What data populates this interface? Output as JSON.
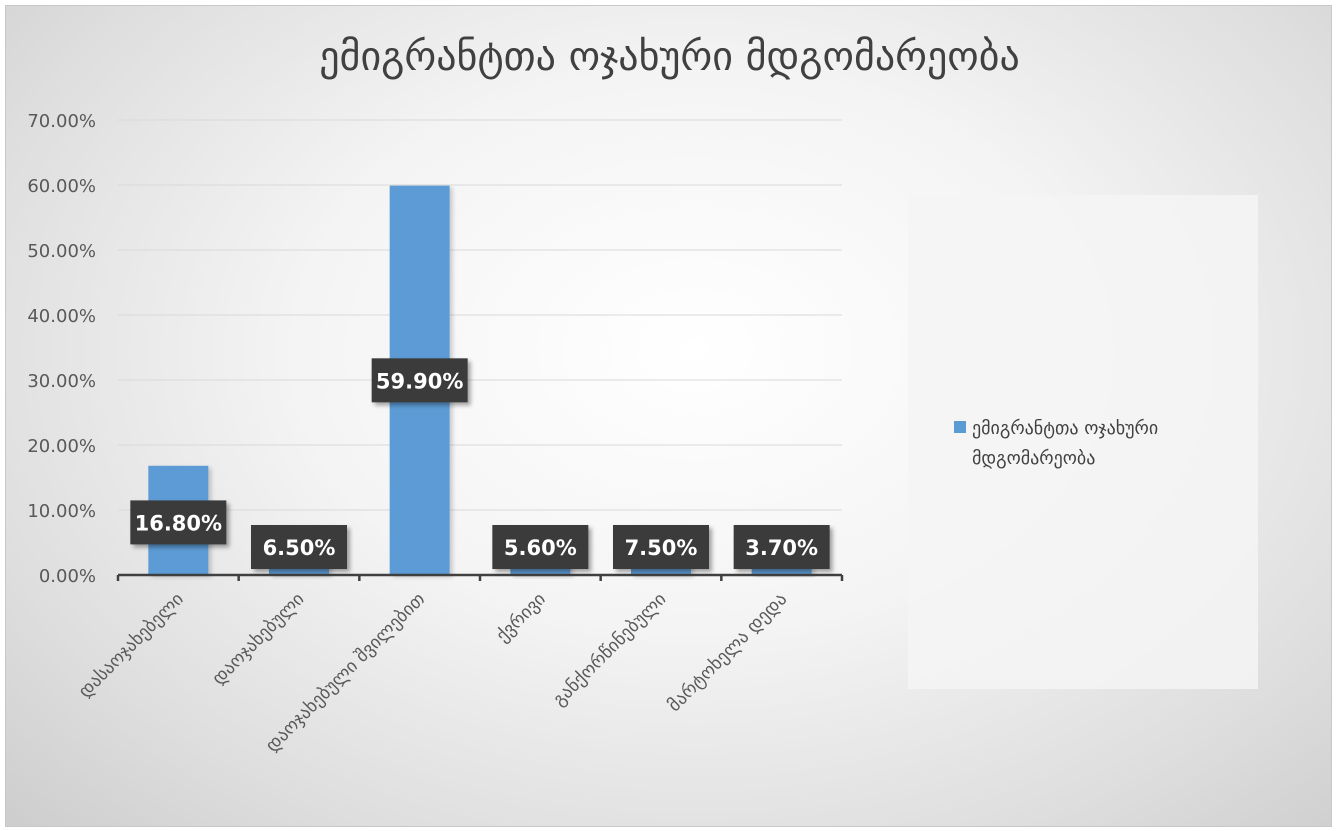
{
  "chart_data": {
    "type": "bar",
    "title": "ემიგრანტთა ოჯახური მდგომარეობა",
    "categories": [
      "დასაოჯახებელი",
      "დაოჯახებული",
      "დაოჯახებული შვილებით",
      "ქვრივი",
      "განქორწინებული",
      "მარტოხელა დედა"
    ],
    "series": [
      {
        "name": "ემიგრანტთა ოჯახური მდგომარეობა",
        "values": [
          16.8,
          6.5,
          59.9,
          5.6,
          7.5,
          3.7
        ],
        "labels": [
          "16.80%",
          "6.50%",
          "59.90%",
          "5.60%",
          "7.50%",
          "3.70%"
        ],
        "color": "#5b9bd5"
      }
    ],
    "y_ticks": [
      "0.00%",
      "10.00%",
      "20.00%",
      "30.00%",
      "40.00%",
      "50.00%",
      "60.00%",
      "70.00%"
    ],
    "ylim": [
      0,
      70
    ],
    "grid": true,
    "legend_position": "right"
  }
}
